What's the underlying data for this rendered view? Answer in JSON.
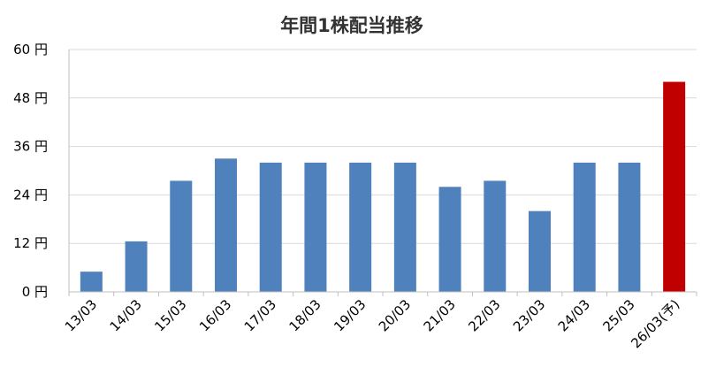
{
  "chart_data": {
    "type": "bar",
    "title": "年間1株配当推移",
    "xlabel": "",
    "ylabel": "",
    "ylim": [
      0,
      60
    ],
    "y_ticks": [
      {
        "value": 0,
        "label": "0 円"
      },
      {
        "value": 12,
        "label": "12 円"
      },
      {
        "value": 24,
        "label": "24 円"
      },
      {
        "value": 36,
        "label": "36 円"
      },
      {
        "value": 48,
        "label": "48 円"
      },
      {
        "value": 60,
        "label": "60 円"
      }
    ],
    "categories": [
      "13/03",
      "14/03",
      "15/03",
      "16/03",
      "17/03",
      "18/03",
      "19/03",
      "20/03",
      "21/03",
      "22/03",
      "23/03",
      "24/03",
      "25/03",
      "26/03(予)"
    ],
    "values": [
      5,
      12.5,
      27.5,
      33,
      32,
      32,
      32,
      32,
      26,
      27.5,
      20,
      32,
      32,
      52
    ],
    "bar_colors": [
      "#4f81bd",
      "#4f81bd",
      "#4f81bd",
      "#4f81bd",
      "#4f81bd",
      "#4f81bd",
      "#4f81bd",
      "#4f81bd",
      "#4f81bd",
      "#4f81bd",
      "#4f81bd",
      "#4f81bd",
      "#4f81bd",
      "#c00000"
    ],
    "grid": true,
    "legend": "none"
  }
}
